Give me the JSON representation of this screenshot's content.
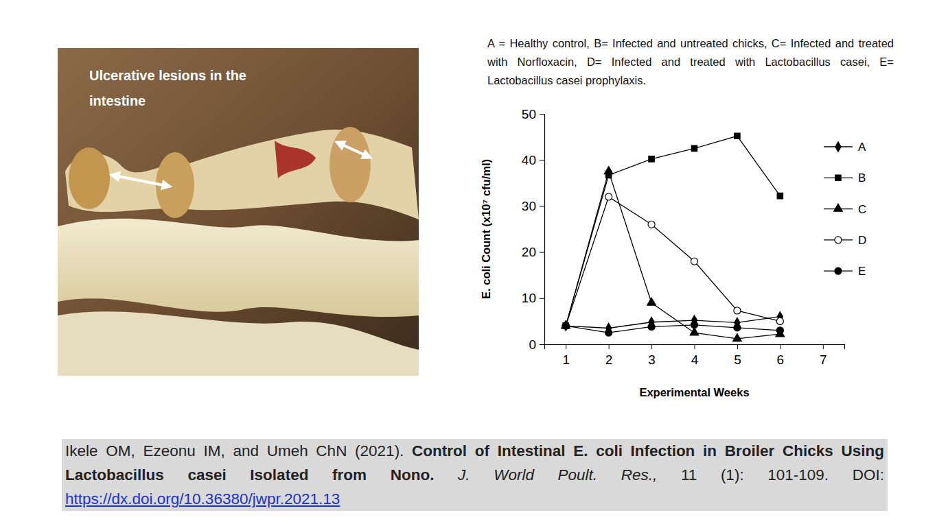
{
  "chart_data": {
    "type": "line",
    "subtitle": "A = Healthy control, B= Infected and untreated chicks, C= Infected and treated with Norfloxacin, D= Infected and treated with Lactobacillus casei, E= Lactobacillus casei prophylaxis.",
    "xlabel": "Experimental Weeks",
    "ylabel": "E. coli Count (x10⁷ cfu/ml)",
    "x": [
      1,
      2,
      3,
      4,
      5,
      6
    ],
    "xlim": [
      0.5,
      7.5
    ],
    "xticks": [
      1,
      2,
      3,
      4,
      5,
      6,
      7
    ],
    "ylim": [
      0,
      50
    ],
    "yticks": [
      0,
      10,
      20,
      30,
      40,
      50
    ],
    "grid": false,
    "legend": "right",
    "series": [
      {
        "name": "A",
        "color": "#000000",
        "marker": "diamond",
        "values": [
          4,
          3.5,
          4.8,
          5.2,
          4.7,
          6
        ]
      },
      {
        "name": "B",
        "color": "#000000",
        "marker": "square",
        "values": [
          4,
          36.7,
          40.2,
          42.5,
          45.2,
          32.2
        ]
      },
      {
        "name": "C",
        "color": "#000000",
        "marker": "triangle",
        "values": [
          4,
          37.5,
          9,
          2.5,
          1.2,
          2.2
        ]
      },
      {
        "name": "D",
        "color": "#000000",
        "marker": "circle-open",
        "values": [
          4,
          32,
          26,
          18,
          7.3,
          5
        ]
      },
      {
        "name": "E",
        "color": "#000000",
        "marker": "circle",
        "values": [
          4,
          2.5,
          3.8,
          4.2,
          3.6,
          3
        ]
      }
    ]
  },
  "photo_label": "Ulcerative lesions in the intestine",
  "citation": {
    "authors": "Ikele OM, Ezeonu IM, and Umeh ChN (2021).",
    "title": "Control of Intestinal E. coli Infection in Broiler Chicks Using Lactobacillus casei Isolated from Nono.",
    "journal": "J. World Poult. Res.,",
    "volume": "11 (1): 101-109.",
    "doi_label": "DOI:",
    "doi": "https://dx.doi.org/10.36380/jwpr.2021.13"
  }
}
